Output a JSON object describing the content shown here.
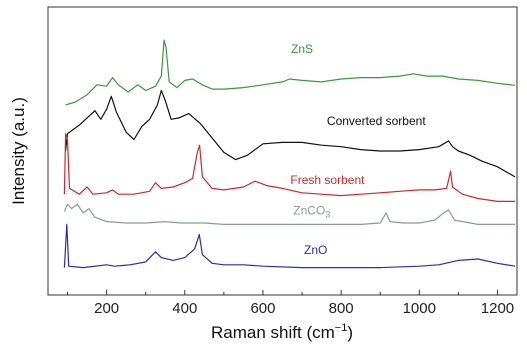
{
  "chart_data": {
    "type": "line",
    "title": "",
    "xlabel": "Raman shift (cm",
    "xlabel_sup": "−1",
    "xlabel_end": ")",
    "ylabel": "Intensity (a.u.)",
    "xlim": [
      50,
      1250
    ],
    "ylim": [
      0,
      10
    ],
    "x_ticks": [
      "200",
      "400",
      "600",
      "800",
      "1000",
      "1200"
    ],
    "x_tick_values": [
      200,
      400,
      600,
      800,
      1000,
      1200
    ],
    "y_ticks_labeled": false,
    "grid": false,
    "series": [
      {
        "name": "ZnS",
        "name_sub": "",
        "color": "#3a9a3a",
        "label_at": [
          700,
          8.4
        ],
        "points": [
          [
            95,
            6.6
          ],
          [
            120,
            6.7
          ],
          [
            150,
            6.95
          ],
          [
            175,
            7.3
          ],
          [
            200,
            7.25
          ],
          [
            215,
            7.55
          ],
          [
            230,
            7.3
          ],
          [
            255,
            7.05
          ],
          [
            280,
            7.3
          ],
          [
            300,
            7.1
          ],
          [
            325,
            7.25
          ],
          [
            340,
            7.6
          ],
          [
            347,
            8.85
          ],
          [
            352,
            8.6
          ],
          [
            360,
            7.4
          ],
          [
            380,
            7.2
          ],
          [
            400,
            7.45
          ],
          [
            420,
            7.5
          ],
          [
            445,
            7.3
          ],
          [
            470,
            7.15
          ],
          [
            500,
            7.15
          ],
          [
            550,
            7.2
          ],
          [
            600,
            7.3
          ],
          [
            650,
            7.4
          ],
          [
            668,
            7.5
          ],
          [
            700,
            7.45
          ],
          [
            750,
            7.4
          ],
          [
            800,
            7.5
          ],
          [
            850,
            7.55
          ],
          [
            900,
            7.55
          ],
          [
            950,
            7.6
          ],
          [
            985,
            7.68
          ],
          [
            1020,
            7.6
          ],
          [
            1060,
            7.6
          ],
          [
            1100,
            7.5
          ],
          [
            1150,
            7.45
          ],
          [
            1200,
            7.35
          ],
          [
            1245,
            7.28
          ]
        ]
      },
      {
        "name": "Converted sorbent",
        "name_sub": "",
        "color": "#111111",
        "label_at": [
          890,
          5.9
        ],
        "points": [
          [
            95,
            5.0
          ],
          [
            100,
            5.6
          ],
          [
            115,
            5.75
          ],
          [
            130,
            5.9
          ],
          [
            150,
            6.15
          ],
          [
            170,
            6.4
          ],
          [
            185,
            6.1
          ],
          [
            200,
            6.45
          ],
          [
            212,
            6.9
          ],
          [
            225,
            6.35
          ],
          [
            250,
            5.65
          ],
          [
            270,
            5.4
          ],
          [
            290,
            5.85
          ],
          [
            310,
            6.1
          ],
          [
            330,
            6.6
          ],
          [
            340,
            7.1
          ],
          [
            350,
            6.75
          ],
          [
            365,
            6.1
          ],
          [
            385,
            6.15
          ],
          [
            410,
            6.3
          ],
          [
            440,
            5.95
          ],
          [
            470,
            5.45
          ],
          [
            500,
            4.95
          ],
          [
            530,
            4.7
          ],
          [
            560,
            4.85
          ],
          [
            600,
            5.25
          ],
          [
            650,
            5.3
          ],
          [
            700,
            5.3
          ],
          [
            750,
            5.2
          ],
          [
            800,
            5.15
          ],
          [
            850,
            5.05
          ],
          [
            900,
            5.0
          ],
          [
            950,
            5.0
          ],
          [
            1000,
            5.05
          ],
          [
            1050,
            5.15
          ],
          [
            1075,
            5.35
          ],
          [
            1085,
            5.15
          ],
          [
            1100,
            5.0
          ],
          [
            1130,
            4.85
          ],
          [
            1160,
            4.65
          ],
          [
            1200,
            4.45
          ],
          [
            1245,
            4.1
          ]
        ]
      },
      {
        "name": "Fresh sorbent",
        "name_sub": "",
        "color": "#cc2a2a",
        "label_at": [
          765,
          3.85
        ],
        "points": [
          [
            92,
            3.5
          ],
          [
            95,
            5.6
          ],
          [
            100,
            5.4
          ],
          [
            105,
            3.7
          ],
          [
            130,
            3.5
          ],
          [
            150,
            3.75
          ],
          [
            165,
            3.5
          ],
          [
            200,
            3.55
          ],
          [
            215,
            3.65
          ],
          [
            230,
            3.5
          ],
          [
            270,
            3.5
          ],
          [
            310,
            3.6
          ],
          [
            325,
            3.9
          ],
          [
            340,
            3.7
          ],
          [
            370,
            3.75
          ],
          [
            400,
            3.9
          ],
          [
            420,
            4.05
          ],
          [
            432,
            4.95
          ],
          [
            438,
            5.2
          ],
          [
            445,
            4.1
          ],
          [
            470,
            3.7
          ],
          [
            500,
            3.65
          ],
          [
            550,
            3.75
          ],
          [
            580,
            3.95
          ],
          [
            610,
            3.8
          ],
          [
            650,
            3.7
          ],
          [
            700,
            3.55
          ],
          [
            750,
            3.5
          ],
          [
            800,
            3.45
          ],
          [
            850,
            3.5
          ],
          [
            900,
            3.55
          ],
          [
            950,
            3.6
          ],
          [
            1000,
            3.65
          ],
          [
            1040,
            3.65
          ],
          [
            1070,
            3.7
          ],
          [
            1080,
            4.3
          ],
          [
            1085,
            3.75
          ],
          [
            1110,
            3.5
          ],
          [
            1150,
            3.35
          ],
          [
            1200,
            3.25
          ],
          [
            1245,
            3.25
          ]
        ]
      },
      {
        "name": "ZnCO",
        "name_sub": "3",
        "color": "#8a9aa2",
        "label_at": [
          725,
          2.8
        ],
        "points": [
          [
            92,
            2.9
          ],
          [
            100,
            3.15
          ],
          [
            110,
            3.0
          ],
          [
            125,
            3.15
          ],
          [
            140,
            2.85
          ],
          [
            155,
            3.0
          ],
          [
            170,
            2.7
          ],
          [
            200,
            2.55
          ],
          [
            250,
            2.5
          ],
          [
            300,
            2.5
          ],
          [
            350,
            2.55
          ],
          [
            390,
            2.5
          ],
          [
            450,
            2.5
          ],
          [
            500,
            2.45
          ],
          [
            600,
            2.45
          ],
          [
            700,
            2.45
          ],
          [
            800,
            2.45
          ],
          [
            850,
            2.45
          ],
          [
            900,
            2.5
          ],
          [
            915,
            2.85
          ],
          [
            925,
            2.55
          ],
          [
            960,
            2.5
          ],
          [
            1000,
            2.5
          ],
          [
            1040,
            2.6
          ],
          [
            1062,
            2.85
          ],
          [
            1075,
            2.95
          ],
          [
            1090,
            2.6
          ],
          [
            1150,
            2.45
          ],
          [
            1200,
            2.45
          ],
          [
            1245,
            2.45
          ]
        ]
      },
      {
        "name": "ZnO",
        "name_sub": "",
        "color": "#2b2bb8",
        "label_at": [
          735,
          1.42
        ],
        "points": [
          [
            92,
            0.95
          ],
          [
            98,
            2.45
          ],
          [
            103,
            1.0
          ],
          [
            140,
            0.95
          ],
          [
            200,
            1.05
          ],
          [
            220,
            1.0
          ],
          [
            260,
            1.05
          ],
          [
            300,
            1.15
          ],
          [
            325,
            1.5
          ],
          [
            340,
            1.3
          ],
          [
            370,
            1.2
          ],
          [
            400,
            1.3
          ],
          [
            425,
            1.6
          ],
          [
            437,
            2.1
          ],
          [
            445,
            1.4
          ],
          [
            470,
            1.1
          ],
          [
            500,
            1.05
          ],
          [
            550,
            1.05
          ],
          [
            600,
            1.0
          ],
          [
            700,
            0.95
          ],
          [
            800,
            0.95
          ],
          [
            900,
            0.95
          ],
          [
            1000,
            1.0
          ],
          [
            1050,
            1.05
          ],
          [
            1100,
            1.2
          ],
          [
            1150,
            1.25
          ],
          [
            1200,
            1.1
          ],
          [
            1245,
            1.0
          ]
        ]
      }
    ]
  }
}
